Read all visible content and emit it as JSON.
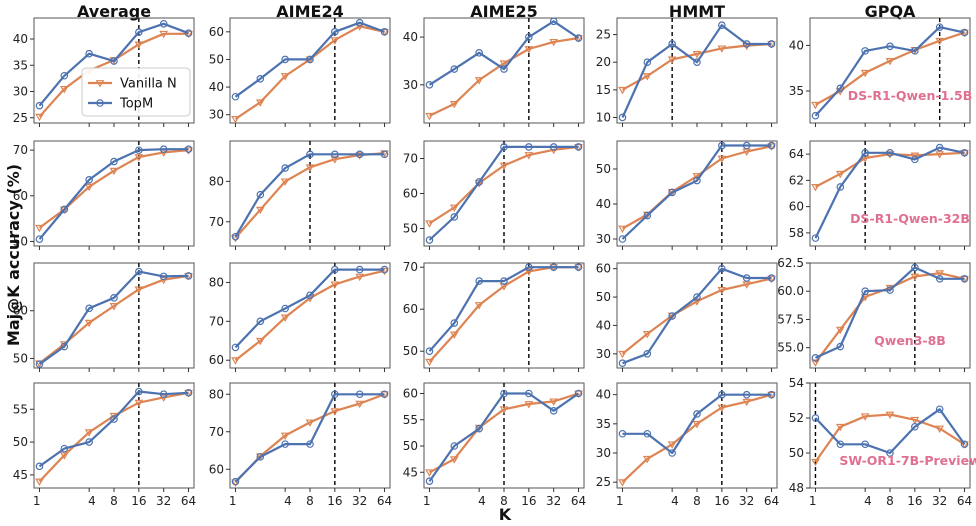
{
  "chart_data": {
    "type": "line",
    "ylabel": "Maj@K accuracy (%)",
    "xlabel": "K",
    "x": [
      1,
      2,
      4,
      8,
      16,
      32,
      64
    ],
    "x_ticks": [
      1,
      4,
      8,
      16,
      32,
      64
    ],
    "x_tick_labels": [
      "1",
      "4",
      "8",
      "16",
      "32",
      "64"
    ],
    "legend": {
      "entries": [
        "Vanilla N",
        "TopM"
      ],
      "placement": "upper-left of first panel"
    },
    "colors": {
      "vanilla": "#dd8452",
      "topm": "#4c72b0",
      "model_label": "#e07090",
      "frame": "#555555"
    },
    "columns": [
      "Average",
      "AIME24",
      "AIME25",
      "HMMT",
      "GPQA"
    ],
    "rows": [
      {
        "model": "DS-R1-Qwen-1.5B",
        "panels": [
          {
            "ylim": [
              24,
              44
            ],
            "yticks": [
              25,
              30,
              35,
              40
            ],
            "vline": 16,
            "series": [
              {
                "name": "Vanilla N",
                "values": [
                  25.2,
                  30.5,
                  34.0,
                  36.0,
                  39.0,
                  41.0,
                  41.0
                ]
              },
              {
                "name": "TopM",
                "values": [
                  27.3,
                  33.0,
                  37.2,
                  35.8,
                  41.3,
                  42.9,
                  41.1
                ]
              }
            ]
          },
          {
            "ylim": [
              27,
              65
            ],
            "yticks": [
              30,
              40,
              50,
              60
            ],
            "vline": 16,
            "series": [
              {
                "name": "Vanilla N",
                "values": [
                  28.5,
                  34.5,
                  44.0,
                  50.0,
                  57.0,
                  62.0,
                  60.0
                ]
              },
              {
                "name": "TopM",
                "values": [
                  36.5,
                  43.0,
                  50.0,
                  50.0,
                  60.0,
                  63.3,
                  60.0
                ]
              }
            ]
          },
          {
            "ylim": [
              22,
              44
            ],
            "yticks": [
              30,
              40
            ],
            "vline": 16,
            "series": [
              {
                "name": "Vanilla N",
                "values": [
                  23.5,
                  26.0,
                  31.0,
                  34.5,
                  37.5,
                  39.0,
                  39.8
                ]
              },
              {
                "name": "TopM",
                "values": [
                  30.0,
                  33.3,
                  36.7,
                  33.3,
                  40.0,
                  43.3,
                  39.8
                ]
              }
            ]
          },
          {
            "ylim": [
              9,
              28
            ],
            "yticks": [
              10,
              15,
              20,
              25
            ],
            "vline": 4,
            "series": [
              {
                "name": "Vanilla N",
                "values": [
                  15.0,
                  17.5,
                  20.5,
                  21.5,
                  22.5,
                  23.0,
                  23.3
                ]
              },
              {
                "name": "TopM",
                "values": [
                  10.0,
                  20.0,
                  23.3,
                  20.0,
                  26.7,
                  23.3,
                  23.3
                ]
              }
            ]
          },
          {
            "ylim": [
              31.5,
              43
            ],
            "yticks": [
              35,
              40
            ],
            "vline": 32,
            "series": [
              {
                "name": "Vanilla N",
                "values": [
                  33.5,
                  35.0,
                  37.0,
                  38.3,
                  39.5,
                  40.5,
                  41.4
                ]
              },
              {
                "name": "TopM",
                "values": [
                  32.3,
                  35.3,
                  39.4,
                  39.9,
                  39.4,
                  42.0,
                  41.4
                ]
              }
            ]
          }
        ]
      },
      {
        "model": "DS-R1-Qwen-32B",
        "panels": [
          {
            "ylim": [
              49,
              72
            ],
            "yticks": [
              50,
              60,
              70
            ],
            "vline": 16,
            "series": [
              {
                "name": "Vanilla N",
                "values": [
                  53.0,
                  57.0,
                  62.0,
                  65.5,
                  68.5,
                  69.5,
                  70.0
                ]
              },
              {
                "name": "TopM",
                "values": [
                  50.5,
                  57.0,
                  63.5,
                  67.5,
                  70.0,
                  70.2,
                  70.2
                ]
              }
            ]
          },
          {
            "ylim": [
              64,
              90
            ],
            "yticks": [
              70,
              80
            ],
            "vline": 8,
            "series": [
              {
                "name": "Vanilla N",
                "values": [
                  66.0,
                  73.0,
                  80.0,
                  83.5,
                  85.5,
                  86.5,
                  87.0
                ]
              },
              {
                "name": "TopM",
                "values": [
                  66.3,
                  76.7,
                  83.3,
                  86.7,
                  86.7,
                  86.7,
                  86.7
                ]
              }
            ]
          },
          {
            "ylim": [
              45,
              75
            ],
            "yticks": [
              50,
              60,
              70
            ],
            "vline": 8,
            "series": [
              {
                "name": "Vanilla N",
                "values": [
                  51.5,
                  56.0,
                  63.0,
                  68.0,
                  71.0,
                  72.5,
                  73.3
                ]
              },
              {
                "name": "TopM",
                "values": [
                  46.7,
                  53.3,
                  63.3,
                  73.3,
                  73.3,
                  73.3,
                  73.3
                ]
              }
            ]
          },
          {
            "ylim": [
              28,
              58
            ],
            "yticks": [
              30,
              40,
              50
            ],
            "vline": 16,
            "series": [
              {
                "name": "Vanilla N",
                "values": [
                  33.0,
                  37.0,
                  43.5,
                  48.0,
                  53.0,
                  55.0,
                  56.5
                ]
              },
              {
                "name": "TopM",
                "values": [
                  30.0,
                  36.7,
                  43.3,
                  46.7,
                  56.7,
                  56.7,
                  56.7
                ]
              }
            ]
          },
          {
            "ylim": [
              57,
              65
            ],
            "yticks": [
              58,
              60,
              62,
              64
            ],
            "vline": 4,
            "series": [
              {
                "name": "Vanilla N",
                "values": [
                  61.5,
                  62.5,
                  63.7,
                  64.0,
                  63.9,
                  64.0,
                  64.1
                ]
              },
              {
                "name": "TopM",
                "values": [
                  57.6,
                  61.5,
                  64.1,
                  64.1,
                  63.6,
                  64.5,
                  64.1
                ]
              }
            ]
          }
        ]
      },
      {
        "model": "Qwen3-8B",
        "panels": [
          {
            "ylim": [
              48,
              70
            ],
            "yticks": [
              50,
              60
            ],
            "vline": 16,
            "series": [
              {
                "name": "Vanilla N",
                "values": [
                  49.0,
                  53.0,
                  57.5,
                  61.0,
                  64.5,
                  66.5,
                  67.3
                ]
              },
              {
                "name": "TopM",
                "values": [
                  48.8,
                  52.5,
                  60.5,
                  62.7,
                  68.2,
                  67.2,
                  67.3
                ]
              }
            ]
          },
          {
            "ylim": [
              58,
              85
            ],
            "yticks": [
              60,
              70,
              80
            ],
            "vline": 16,
            "series": [
              {
                "name": "Vanilla N",
                "values": [
                  60.0,
                  65.0,
                  71.0,
                  76.0,
                  79.5,
                  81.5,
                  83.0
                ]
              },
              {
                "name": "TopM",
                "values": [
                  63.3,
                  70.0,
                  73.3,
                  76.7,
                  83.3,
                  83.3,
                  83.3
                ]
              }
            ]
          },
          {
            "ylim": [
              46,
              71
            ],
            "yticks": [
              50,
              60,
              70
            ],
            "vline": 16,
            "series": [
              {
                "name": "Vanilla N",
                "values": [
                  47.5,
                  54.0,
                  61.0,
                  65.5,
                  69.0,
                  70.0,
                  70.0
                ]
              },
              {
                "name": "TopM",
                "values": [
                  50.0,
                  56.7,
                  66.7,
                  66.7,
                  70.0,
                  70.0,
                  70.0
                ]
              }
            ]
          },
          {
            "ylim": [
              25,
              62
            ],
            "yticks": [
              30,
              40,
              50,
              60
            ],
            "vline": 16,
            "series": [
              {
                "name": "Vanilla N",
                "values": [
                  30.0,
                  37.0,
                  43.5,
                  48.5,
                  52.5,
                  54.5,
                  56.5
                ]
              },
              {
                "name": "TopM",
                "values": [
                  26.7,
                  30.0,
                  43.3,
                  50.0,
                  60.0,
                  56.7,
                  56.7
                ]
              }
            ]
          },
          {
            "ylim": [
              53.2,
              62.5
            ],
            "yticks": [
              55.0,
              57.5,
              60.0,
              62.5
            ],
            "vline": 16,
            "series": [
              {
                "name": "Vanilla N",
                "values": [
                  53.7,
                  56.6,
                  59.5,
                  60.3,
                  61.3,
                  61.6,
                  61.1
                ]
              },
              {
                "name": "TopM",
                "values": [
                  54.1,
                  55.1,
                  60.0,
                  60.1,
                  62.1,
                  61.1,
                  61.1
                ]
              }
            ]
          }
        ]
      },
      {
        "model": "SW-OR1-7B-Preview",
        "panels": [
          {
            "ylim": [
              43,
              59
            ],
            "yticks": [
              45,
              50,
              55
            ],
            "vline": 16,
            "series": [
              {
                "name": "Vanilla N",
                "values": [
                  44.0,
                  48.0,
                  51.5,
                  54.0,
                  56.0,
                  56.8,
                  57.5
                ]
              },
              {
                "name": "TopM",
                "values": [
                  46.3,
                  49.0,
                  50.0,
                  53.5,
                  57.7,
                  57.3,
                  57.5
                ]
              }
            ]
          },
          {
            "ylim": [
              55,
              83
            ],
            "yticks": [
              60,
              70,
              80
            ],
            "vline": 16,
            "series": [
              {
                "name": "Vanilla N",
                "values": [
                  56.5,
                  63.5,
                  69.0,
                  72.5,
                  75.5,
                  77.5,
                  80.0
                ]
              },
              {
                "name": "TopM",
                "values": [
                  56.7,
                  63.3,
                  66.7,
                  66.7,
                  80.0,
                  80.0,
                  80.0
                ]
              }
            ]
          },
          {
            "ylim": [
              42,
              62
            ],
            "yticks": [
              45,
              50,
              55,
              60
            ],
            "vline": 8,
            "series": [
              {
                "name": "Vanilla N",
                "values": [
                  45.0,
                  47.5,
                  53.5,
                  57.0,
                  58.0,
                  58.5,
                  60.0
                ]
              },
              {
                "name": "TopM",
                "values": [
                  43.3,
                  50.0,
                  53.3,
                  60.0,
                  60.0,
                  56.7,
                  60.0
                ]
              }
            ]
          },
          {
            "ylim": [
              24,
              42
            ],
            "yticks": [
              25,
              30,
              35,
              40
            ],
            "vline": 16,
            "series": [
              {
                "name": "Vanilla N",
                "values": [
                  25.0,
                  29.0,
                  31.5,
                  35.0,
                  37.8,
                  38.8,
                  40.0
                ]
              },
              {
                "name": "TopM",
                "values": [
                  33.3,
                  33.3,
                  30.0,
                  36.7,
                  40.0,
                  40.0,
                  40.0
                ]
              }
            ]
          },
          {
            "ylim": [
              48,
              54
            ],
            "yticks": [
              48,
              50,
              52,
              54
            ],
            "vline": 1,
            "series": [
              {
                "name": "Vanilla N",
                "values": [
                  49.5,
                  51.5,
                  52.1,
                  52.2,
                  51.9,
                  51.4,
                  50.5
                ]
              },
              {
                "name": "TopM",
                "values": [
                  52.0,
                  50.5,
                  50.5,
                  50.0,
                  51.5,
                  52.5,
                  50.5
                ]
              }
            ]
          }
        ]
      }
    ]
  }
}
